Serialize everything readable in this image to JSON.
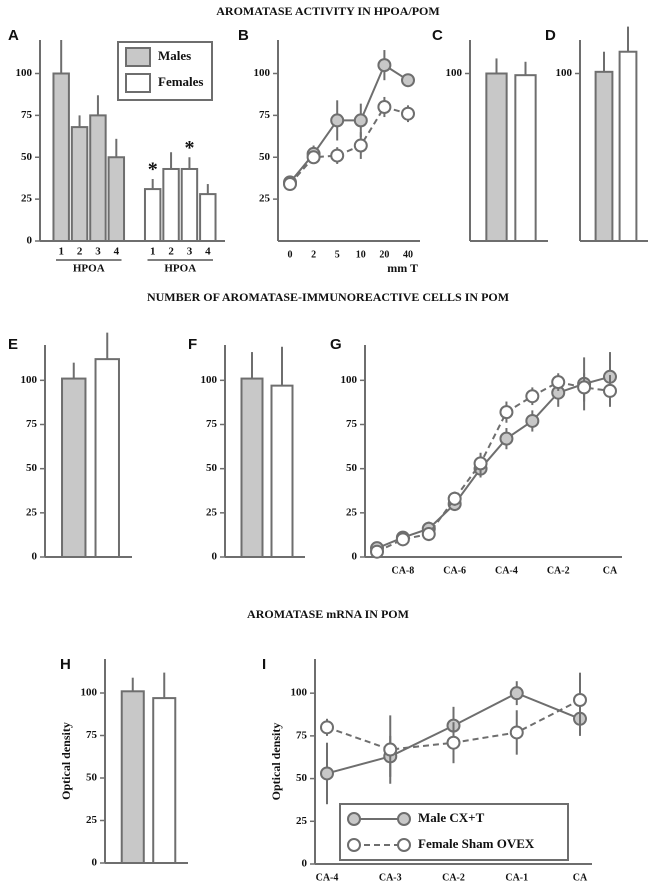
{
  "headings": [
    "AROMATASE ACTIVITY IN HPOA/POM",
    "NUMBER OF AROMATASE-IMMUNOREACTIVE CELLS IN POM",
    "AROMATASE mRNA IN POM"
  ],
  "chart_data": [
    {
      "type": "bar",
      "panel": "A",
      "ylim": [
        0,
        120
      ],
      "yticks": [
        0,
        25,
        50,
        75,
        100
      ],
      "categories": [
        "1",
        "2",
        "3",
        "4"
      ],
      "legend": "top-right",
      "series": [
        {
          "name": "Males",
          "color": "#c8c8c8",
          "values": [
            100,
            68,
            75,
            50
          ],
          "errors": [
            20,
            7,
            12,
            11
          ],
          "group_label": "HPOA"
        },
        {
          "name": "Females",
          "color": "#ffffff",
          "values": [
            31,
            43,
            43,
            28
          ],
          "errors": [
            6,
            10,
            7,
            6
          ],
          "group_label": "HPOA",
          "markers": [
            "*",
            null,
            "*",
            null
          ]
        }
      ]
    },
    {
      "type": "line",
      "panel": "B",
      "ylim": [
        0,
        120
      ],
      "yticks": [
        25,
        50,
        75,
        100
      ],
      "categories": [
        "0",
        "2",
        "5",
        "10",
        "20",
        "40"
      ],
      "xlabel": "mm T",
      "series": [
        {
          "color": "#c8c8c8",
          "line_style": "solid",
          "values": [
            35,
            52,
            72,
            72,
            105,
            96
          ],
          "errors": [
            2,
            5,
            12,
            10,
            9,
            4
          ]
        },
        {
          "color": "#ffffff",
          "line_style": "dashed",
          "values": [
            34,
            50,
            51,
            57,
            80,
            76
          ],
          "errors": [
            2,
            4,
            5,
            8,
            6,
            5
          ]
        }
      ]
    },
    {
      "type": "bar",
      "panel": "C",
      "ylim": [
        0,
        120
      ],
      "yticks": [
        100
      ],
      "series": [
        {
          "color": "#c8c8c8",
          "values": [
            100
          ],
          "errors": [
            9
          ]
        },
        {
          "color": "#ffffff",
          "values": [
            99
          ],
          "errors": [
            8
          ]
        }
      ]
    },
    {
      "type": "bar",
      "panel": "D",
      "ylim": [
        0,
        120
      ],
      "yticks": [
        100
      ],
      "series": [
        {
          "color": "#c8c8c8",
          "values": [
            101
          ],
          "errors": [
            12
          ]
        },
        {
          "color": "#ffffff",
          "values": [
            113
          ],
          "errors": [
            15
          ]
        }
      ]
    },
    {
      "type": "bar",
      "panel": "E",
      "ylim": [
        0,
        120
      ],
      "yticks": [
        0,
        25,
        50,
        75,
        100
      ],
      "series": [
        {
          "color": "#c8c8c8",
          "values": [
            101
          ],
          "errors": [
            9
          ]
        },
        {
          "color": "#ffffff",
          "values": [
            112
          ],
          "errors": [
            15
          ]
        }
      ]
    },
    {
      "type": "bar",
      "panel": "F",
      "ylim": [
        0,
        120
      ],
      "yticks": [
        0,
        25,
        50,
        75,
        100
      ],
      "series": [
        {
          "color": "#c8c8c8",
          "values": [
            101
          ],
          "errors": [
            15
          ]
        },
        {
          "color": "#ffffff",
          "values": [
            97
          ],
          "errors": [
            22
          ]
        }
      ]
    },
    {
      "type": "line",
      "panel": "G",
      "ylim": [
        0,
        120
      ],
      "yticks": [
        0,
        25,
        50,
        75,
        100
      ],
      "categories": [
        null,
        "CA-8",
        null,
        "CA-6",
        null,
        "CA-4",
        null,
        "CA-2",
        null,
        "CA"
      ],
      "series": [
        {
          "color": "#c8c8c8",
          "line_style": "solid",
          "values": [
            5,
            11,
            16,
            30,
            50,
            67,
            77,
            93,
            98,
            102
          ],
          "errors": [
            2,
            3,
            4,
            4,
            5,
            6,
            6,
            8,
            15,
            14
          ]
        },
        {
          "color": "#ffffff",
          "line_style": "dashed",
          "values": [
            3,
            10,
            13,
            33,
            53,
            82,
            91,
            99,
            96,
            94
          ],
          "errors": [
            2,
            3,
            4,
            4,
            6,
            6,
            5,
            5,
            8,
            9
          ]
        }
      ]
    },
    {
      "type": "bar",
      "panel": "H",
      "ylim": [
        0,
        120
      ],
      "yticks": [
        0,
        25,
        50,
        75,
        100
      ],
      "ylabel": "Optical density",
      "series": [
        {
          "color": "#c8c8c8",
          "values": [
            101
          ],
          "errors": [
            8
          ]
        },
        {
          "color": "#ffffff",
          "values": [
            97
          ],
          "errors": [
            15
          ]
        }
      ]
    },
    {
      "type": "line",
      "panel": "I",
      "ylim": [
        0,
        120
      ],
      "yticks": [
        0,
        25,
        50,
        75,
        100
      ],
      "ylabel": "Optical density",
      "categories": [
        "CA-4",
        "CA-3",
        "CA-2",
        "CA-1",
        "CA"
      ],
      "legend": "bottom",
      "series": [
        {
          "name": "Male CX+T",
          "color": "#c8c8c8",
          "line_style": "solid",
          "values": [
            53,
            63,
            81,
            100,
            85
          ],
          "errors": [
            18,
            12,
            11,
            7,
            10
          ]
        },
        {
          "name": "Female Sham OVEX",
          "color": "#ffffff",
          "line_style": "dashed",
          "values": [
            80,
            67,
            71,
            77,
            96
          ],
          "errors": [
            5,
            20,
            12,
            13,
            16
          ]
        }
      ]
    }
  ]
}
